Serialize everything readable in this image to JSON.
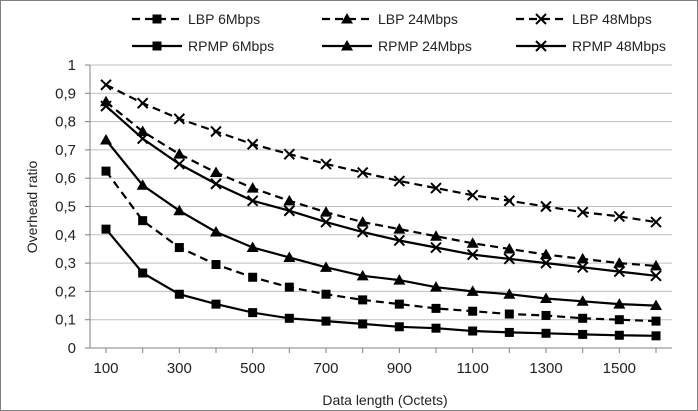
{
  "chart_data": {
    "type": "line",
    "xlabel": "Data length (Octets)",
    "ylabel": "Overhead ratio",
    "xlim": [
      100,
      1600
    ],
    "ylim": [
      0,
      1
    ],
    "x_tick_labels": [
      "100",
      "300",
      "500",
      "700",
      "900",
      "1100",
      "1300",
      "1500"
    ],
    "y_tick_labels": [
      "0",
      "0,1",
      "0,2",
      "0,3",
      "0,4",
      "0,5",
      "0,6",
      "0,7",
      "0,8",
      "0,9",
      "1"
    ],
    "grid": "horizontal",
    "legend_position": "top",
    "x": [
      100,
      200,
      300,
      400,
      500,
      600,
      700,
      800,
      900,
      1000,
      1100,
      1200,
      1300,
      1400,
      1500,
      1600
    ],
    "series": [
      {
        "name": "LBP 6Mbps",
        "line": "dashed",
        "marker": "square",
        "values": [
          0.625,
          0.45,
          0.355,
          0.295,
          0.25,
          0.215,
          0.19,
          0.17,
          0.155,
          0.14,
          0.13,
          0.12,
          0.115,
          0.105,
          0.1,
          0.095
        ]
      },
      {
        "name": "LBP 24Mbps",
        "line": "dashed",
        "marker": "triangle",
        "values": [
          0.87,
          0.765,
          0.685,
          0.62,
          0.565,
          0.52,
          0.48,
          0.445,
          0.42,
          0.395,
          0.37,
          0.35,
          0.33,
          0.315,
          0.3,
          0.29
        ]
      },
      {
        "name": "LBP 48Mbps",
        "line": "dashed",
        "marker": "x",
        "values": [
          0.93,
          0.865,
          0.81,
          0.765,
          0.72,
          0.685,
          0.65,
          0.62,
          0.59,
          0.565,
          0.54,
          0.52,
          0.5,
          0.48,
          0.465,
          0.445
        ]
      },
      {
        "name": "RPMP 6Mbps",
        "line": "solid",
        "marker": "square",
        "values": [
          0.42,
          0.265,
          0.19,
          0.155,
          0.125,
          0.105,
          0.095,
          0.085,
          0.075,
          0.07,
          0.06,
          0.055,
          0.052,
          0.048,
          0.045,
          0.043
        ]
      },
      {
        "name": "RPMP 24Mbps",
        "line": "solid",
        "marker": "triangle",
        "values": [
          0.735,
          0.575,
          0.485,
          0.41,
          0.355,
          0.32,
          0.285,
          0.255,
          0.24,
          0.215,
          0.2,
          0.19,
          0.175,
          0.165,
          0.155,
          0.15
        ]
      },
      {
        "name": "RPMP 48Mbps",
        "line": "solid",
        "marker": "x",
        "values": [
          0.855,
          0.74,
          0.65,
          0.58,
          0.52,
          0.485,
          0.445,
          0.41,
          0.38,
          0.355,
          0.33,
          0.315,
          0.3,
          0.285,
          0.27,
          0.255
        ]
      }
    ],
    "colors": {
      "series": "#000000",
      "grid": "#bfbfbf",
      "frame": "#808080",
      "axis": "#808080"
    }
  }
}
